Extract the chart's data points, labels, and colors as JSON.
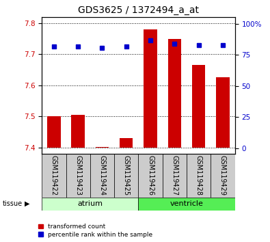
{
  "title": "GDS3625 / 1372494_a_at",
  "samples": [
    "GSM119422",
    "GSM119423",
    "GSM119424",
    "GSM119425",
    "GSM119426",
    "GSM119427",
    "GSM119428",
    "GSM119429"
  ],
  "transformed_count": [
    7.5,
    7.504,
    7.401,
    7.43,
    7.78,
    7.75,
    7.665,
    7.625
  ],
  "percentile_rank": [
    82,
    82,
    81,
    82,
    87,
    84,
    83,
    83
  ],
  "ylim_left": [
    7.38,
    7.82
  ],
  "ylim_right": [
    -4.4,
    105.6
  ],
  "yticks_left": [
    7.4,
    7.5,
    7.6,
    7.7,
    7.8
  ],
  "yticks_right": [
    0,
    25,
    50,
    75,
    100
  ],
  "ybase": 7.4,
  "bar_color": "#cc0000",
  "dot_color": "#0000cc",
  "atrium_color": "#ccffcc",
  "ventricle_color": "#55ee55",
  "gray_color": "#cccccc",
  "tissue_label": "tissue",
  "atrium_label": "atrium",
  "ventricle_label": "ventricle",
  "atrium_samples": [
    0,
    1,
    2,
    3
  ],
  "ventricle_samples": [
    4,
    5,
    6,
    7
  ],
  "legend_label_bar": "transformed count",
  "legend_label_dot": "percentile rank within the sample",
  "bar_width": 0.55,
  "title_fontsize": 10,
  "axis_fontsize": 8,
  "label_fontsize": 7,
  "tick_fontsize": 7.5
}
